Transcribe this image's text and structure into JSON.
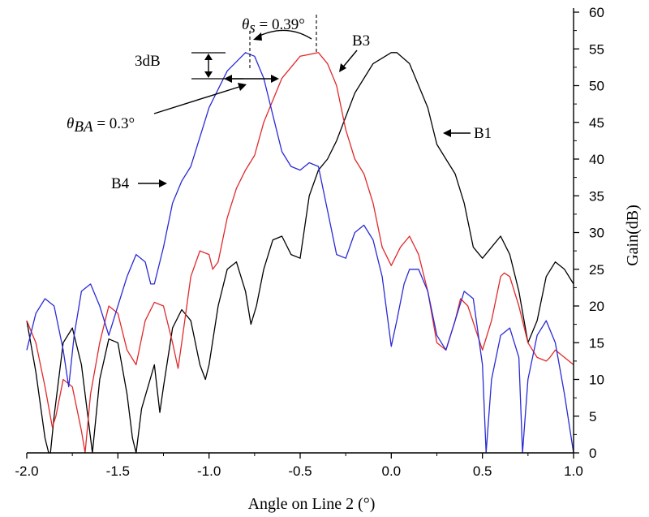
{
  "chart_data": {
    "type": "line",
    "title": "",
    "xlabel": "Angle on Line 2 (°)",
    "ylabel": "Gain(dB)",
    "xlim": [
      -2.0,
      1.0
    ],
    "ylim": [
      0,
      60
    ],
    "x_ticks": [
      "-2.0",
      "-1.5",
      "-1.0",
      "-0.5",
      "0.0",
      "0.5",
      "1.0"
    ],
    "y_ticks": [
      "0",
      "5",
      "10",
      "15",
      "20",
      "25",
      "30",
      "35",
      "40",
      "45",
      "50",
      "55",
      "60"
    ],
    "y_axis_side": "right",
    "grid": false,
    "series": [
      {
        "name": "B1",
        "color": "#000000",
        "x": [
          -2.0,
          -1.95,
          -1.9,
          -1.88,
          -1.87,
          -1.85,
          -1.8,
          -1.75,
          -1.7,
          -1.66,
          -1.64,
          -1.6,
          -1.55,
          -1.5,
          -1.45,
          -1.42,
          -1.4,
          -1.37,
          -1.3,
          -1.27,
          -1.25,
          -1.2,
          -1.15,
          -1.1,
          -1.05,
          -1.02,
          -1.0,
          -0.95,
          -0.9,
          -0.85,
          -0.8,
          -0.77,
          -0.74,
          -0.7,
          -0.65,
          -0.6,
          -0.55,
          -0.5,
          -0.45,
          -0.4,
          -0.35,
          -0.3,
          -0.2,
          -0.1,
          0.0,
          0.03,
          0.1,
          0.2,
          0.25,
          0.3,
          0.35,
          0.4,
          0.45,
          0.5,
          0.55,
          0.6,
          0.65,
          0.7,
          0.75,
          0.8,
          0.85,
          0.9,
          0.95,
          1.0
        ],
        "y": [
          18,
          11,
          2,
          0,
          0,
          5,
          15,
          17,
          12,
          4,
          0,
          10,
          15.5,
          15,
          8,
          2,
          0,
          6,
          12,
          5.5,
          9,
          17,
          19.5,
          18,
          12,
          10,
          12,
          20,
          25,
          26,
          22,
          17.5,
          20,
          25,
          29,
          29.5,
          27,
          26.5,
          35,
          38.5,
          40,
          42.5,
          49,
          53,
          54.5,
          54.5,
          53,
          47,
          42,
          40,
          38,
          34,
          28,
          26.5,
          28,
          29.5,
          27,
          22,
          15,
          18,
          24,
          26,
          25,
          23
        ]
      },
      {
        "name": "B3",
        "color": "#e0292b",
        "x": [
          -2.0,
          -1.95,
          -1.9,
          -1.86,
          -1.84,
          -1.8,
          -1.75,
          -1.7,
          -1.68,
          -1.65,
          -1.6,
          -1.55,
          -1.5,
          -1.45,
          -1.4,
          -1.35,
          -1.3,
          -1.25,
          -1.2,
          -1.17,
          -1.15,
          -1.1,
          -1.05,
          -1.0,
          -0.98,
          -0.95,
          -0.9,
          -0.85,
          -0.8,
          -0.75,
          -0.7,
          -0.6,
          -0.5,
          -0.4,
          -0.35,
          -0.3,
          -0.25,
          -0.2,
          -0.15,
          -0.1,
          -0.05,
          0.0,
          0.05,
          0.1,
          0.15,
          0.2,
          0.25,
          0.3,
          0.35,
          0.38,
          0.42,
          0.5,
          0.55,
          0.6,
          0.62,
          0.65,
          0.7,
          0.75,
          0.8,
          0.85,
          0.87,
          0.9,
          0.95,
          1.0
        ],
        "y": [
          18,
          15,
          9,
          3.5,
          5,
          10,
          9,
          3,
          0,
          8,
          15,
          20,
          19,
          14,
          12,
          18,
          20.5,
          20,
          15,
          11.5,
          15,
          24,
          27.5,
          27,
          25,
          26,
          32,
          36,
          38.5,
          40.5,
          45,
          51,
          54,
          54.5,
          53,
          50,
          44,
          40,
          38,
          34,
          28,
          25.5,
          28,
          29.5,
          27,
          22,
          15,
          14,
          18,
          21,
          20,
          14,
          18,
          24,
          24.5,
          24,
          20,
          15,
          13,
          12.5,
          13,
          14,
          13,
          12
        ]
      },
      {
        "name": "B4",
        "color": "#2a2ad6",
        "x": [
          -2.0,
          -1.95,
          -1.9,
          -1.85,
          -1.8,
          -1.77,
          -1.74,
          -1.7,
          -1.65,
          -1.6,
          -1.55,
          -1.5,
          -1.45,
          -1.4,
          -1.35,
          -1.32,
          -1.3,
          -1.25,
          -1.2,
          -1.15,
          -1.1,
          -1.0,
          -0.9,
          -0.8,
          -0.75,
          -0.7,
          -0.65,
          -0.6,
          -0.55,
          -0.5,
          -0.45,
          -0.4,
          -0.35,
          -0.3,
          -0.25,
          -0.2,
          -0.15,
          -0.1,
          -0.05,
          0.0,
          0.03,
          0.07,
          0.1,
          0.15,
          0.2,
          0.25,
          0.3,
          0.35,
          0.4,
          0.45,
          0.5,
          0.52,
          0.55,
          0.6,
          0.65,
          0.7,
          0.72,
          0.75,
          0.8,
          0.85,
          0.9,
          0.95,
          1.0
        ],
        "y": [
          14,
          19,
          21,
          20,
          14,
          9,
          16,
          22,
          23,
          20,
          16,
          20,
          24,
          27,
          26,
          23,
          23,
          28,
          34,
          37,
          39,
          47,
          52,
          54.5,
          54,
          51,
          46,
          41,
          39,
          38.5,
          39.5,
          39,
          33,
          27,
          26.5,
          30,
          31,
          29,
          24,
          14.5,
          18,
          23,
          25,
          25,
          22,
          16,
          14,
          18,
          22,
          21,
          12,
          0,
          10,
          16,
          17,
          13,
          0,
          10,
          16,
          18,
          15,
          8,
          0
        ]
      }
    ],
    "annotations": {
      "b1_label": "B1",
      "b3_label": "B3",
      "b4_label": "B4",
      "three_db": "3dB",
      "theta_s_symbol": "θ",
      "theta_s_sub": "s",
      "theta_s_value": " = 0.39°",
      "theta_ba_symbol": "θ",
      "theta_ba_sub": "BA",
      "theta_ba_value": " = 0.3°"
    }
  }
}
